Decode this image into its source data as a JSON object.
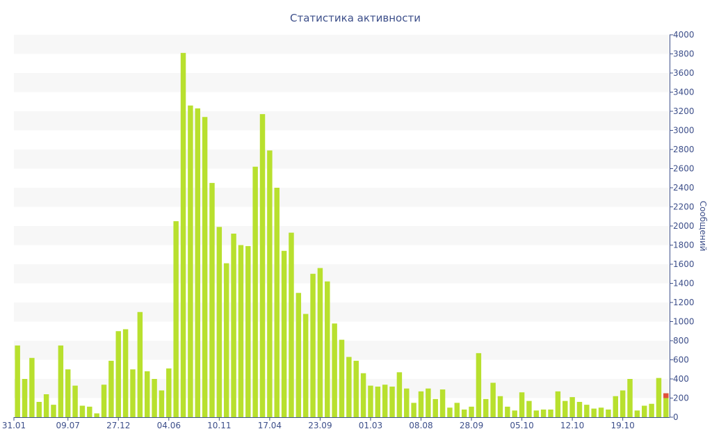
{
  "chart_data": {
    "type": "bar",
    "title": "Статистика активности",
    "xlabel": "",
    "ylabel": "Сообщений",
    "ylim": [
      0,
      4000
    ],
    "y_ticks": [
      0,
      200,
      400,
      600,
      800,
      1000,
      1200,
      1400,
      1600,
      1800,
      2000,
      2200,
      2400,
      2600,
      2800,
      3000,
      3200,
      3400,
      3600,
      3800,
      4000
    ],
    "x_tick_labels": [
      {
        "bar": 0,
        "label": "31.01"
      },
      {
        "bar": 7,
        "label": "09.07"
      },
      {
        "bar": 14,
        "label": "27.12"
      },
      {
        "bar": 21,
        "label": "04.06"
      },
      {
        "bar": 28,
        "label": "10.11"
      },
      {
        "bar": 35,
        "label": "17.04"
      },
      {
        "bar": 42,
        "label": "23.09"
      },
      {
        "bar": 49,
        "label": "01.03"
      },
      {
        "bar": 56,
        "label": "08.08"
      },
      {
        "bar": 63,
        "label": "28.09"
      },
      {
        "bar": 70,
        "label": "05.10"
      },
      {
        "bar": 77,
        "label": "12.10"
      },
      {
        "bar": 84,
        "label": "19.10"
      }
    ],
    "grid": "horizontal bands",
    "colors": {
      "bar": "#b8e02e",
      "band": "#f7f7f7",
      "text": "#3d4f8a",
      "axis": "#3d4f8a",
      "last_segment": "#e0503c"
    },
    "values": [
      750,
      400,
      620,
      160,
      240,
      130,
      750,
      500,
      330,
      120,
      110,
      40,
      340,
      590,
      900,
      920,
      500,
      1100,
      480,
      400,
      280,
      510,
      2050,
      3810,
      3260,
      3230,
      3140,
      2450,
      1990,
      1610,
      1920,
      1800,
      1790,
      2620,
      3170,
      2790,
      2400,
      1740,
      1930,
      1300,
      1080,
      1500,
      1560,
      1420,
      980,
      810,
      630,
      590,
      460,
      330,
      320,
      340,
      320,
      470,
      300,
      150,
      270,
      300,
      190,
      290,
      100,
      150,
      80,
      110,
      670,
      190,
      360,
      220,
      110,
      70,
      260,
      170,
      70,
      80,
      80,
      270,
      170,
      210,
      160,
      130,
      90,
      100,
      80,
      220,
      280,
      400,
      70,
      120,
      140,
      410,
      250
    ],
    "last_bar_red_top": 50
  }
}
